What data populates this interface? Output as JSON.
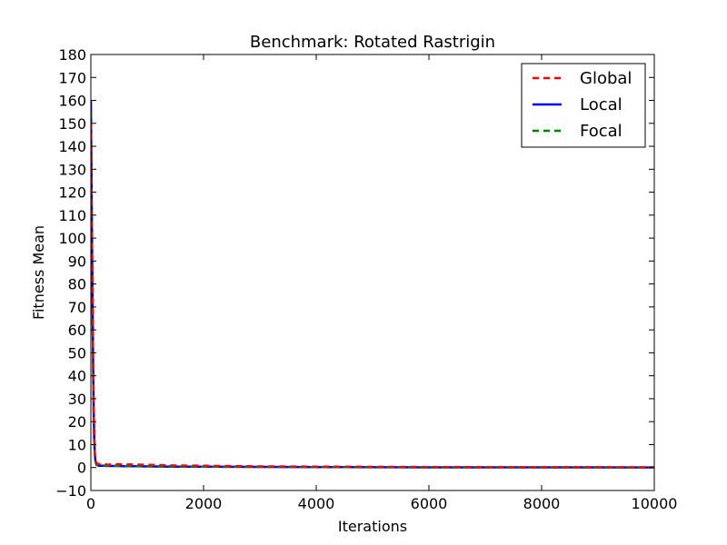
{
  "chart_data": {
    "type": "line",
    "title": "Benchmark: Rotated Rastrigin",
    "xlabel": "Iterations",
    "ylabel": "Fitness Mean",
    "xlim": [
      0,
      10000
    ],
    "ylim": [
      -10,
      180
    ],
    "xticks": [
      0,
      2000,
      4000,
      6000,
      8000,
      10000
    ],
    "yticks": [
      -10,
      0,
      10,
      20,
      30,
      40,
      50,
      60,
      70,
      80,
      90,
      100,
      110,
      120,
      130,
      140,
      150,
      160,
      170,
      180
    ],
    "grid": false,
    "legend_position": "top-right",
    "series": [
      {
        "name": "Global",
        "color": "#ff0000",
        "style": "dashed",
        "x": [
          0,
          10,
          20,
          30,
          40,
          50,
          60,
          70,
          80,
          90,
          100,
          120,
          150,
          200,
          300,
          400,
          600,
          800,
          1000,
          1500,
          2000,
          3000,
          4000,
          6000,
          8000,
          10000
        ],
        "y": [
          150,
          120,
          95,
          70,
          45,
          25,
          12,
          6,
          3.5,
          2.5,
          2,
          1.6,
          1.5,
          1.8,
          1.2,
          1.5,
          1.4,
          1.3,
          1.2,
          0.9,
          0.8,
          0.5,
          0.4,
          0.2,
          0.1,
          0.1
        ]
      },
      {
        "name": "Local",
        "color": "#0000ff",
        "style": "solid",
        "x": [
          0,
          10,
          20,
          30,
          40,
          50,
          60,
          70,
          80,
          90,
          100,
          120,
          150,
          200,
          300,
          400,
          600,
          800,
          1000,
          1500,
          2000,
          3000,
          4000,
          6000,
          8000,
          10000
        ],
        "y": [
          160,
          130,
          100,
          72,
          45,
          25,
          12,
          6,
          3,
          2,
          1.2,
          0.9,
          0.8,
          0.8,
          0.7,
          0.7,
          0.6,
          0.6,
          0.5,
          0.4,
          0.4,
          0.3,
          0.2,
          0.1,
          0.1,
          0.05
        ]
      },
      {
        "name": "Focal",
        "color": "#008000",
        "style": "dashed",
        "x": [
          0,
          10,
          20,
          30,
          40,
          50,
          60,
          70,
          80,
          90,
          100,
          120,
          150,
          200,
          300,
          400,
          600,
          800,
          1000,
          1500,
          2000,
          3000,
          4000,
          6000,
          8000,
          10000
        ],
        "y": [
          155,
          125,
          98,
          70,
          44,
          24,
          12,
          6,
          3,
          2,
          1.2,
          1.0,
          0.9,
          0.9,
          0.8,
          0.8,
          0.7,
          0.7,
          0.6,
          0.5,
          0.4,
          0.3,
          0.2,
          0.1,
          0.1,
          0.05
        ]
      }
    ]
  }
}
